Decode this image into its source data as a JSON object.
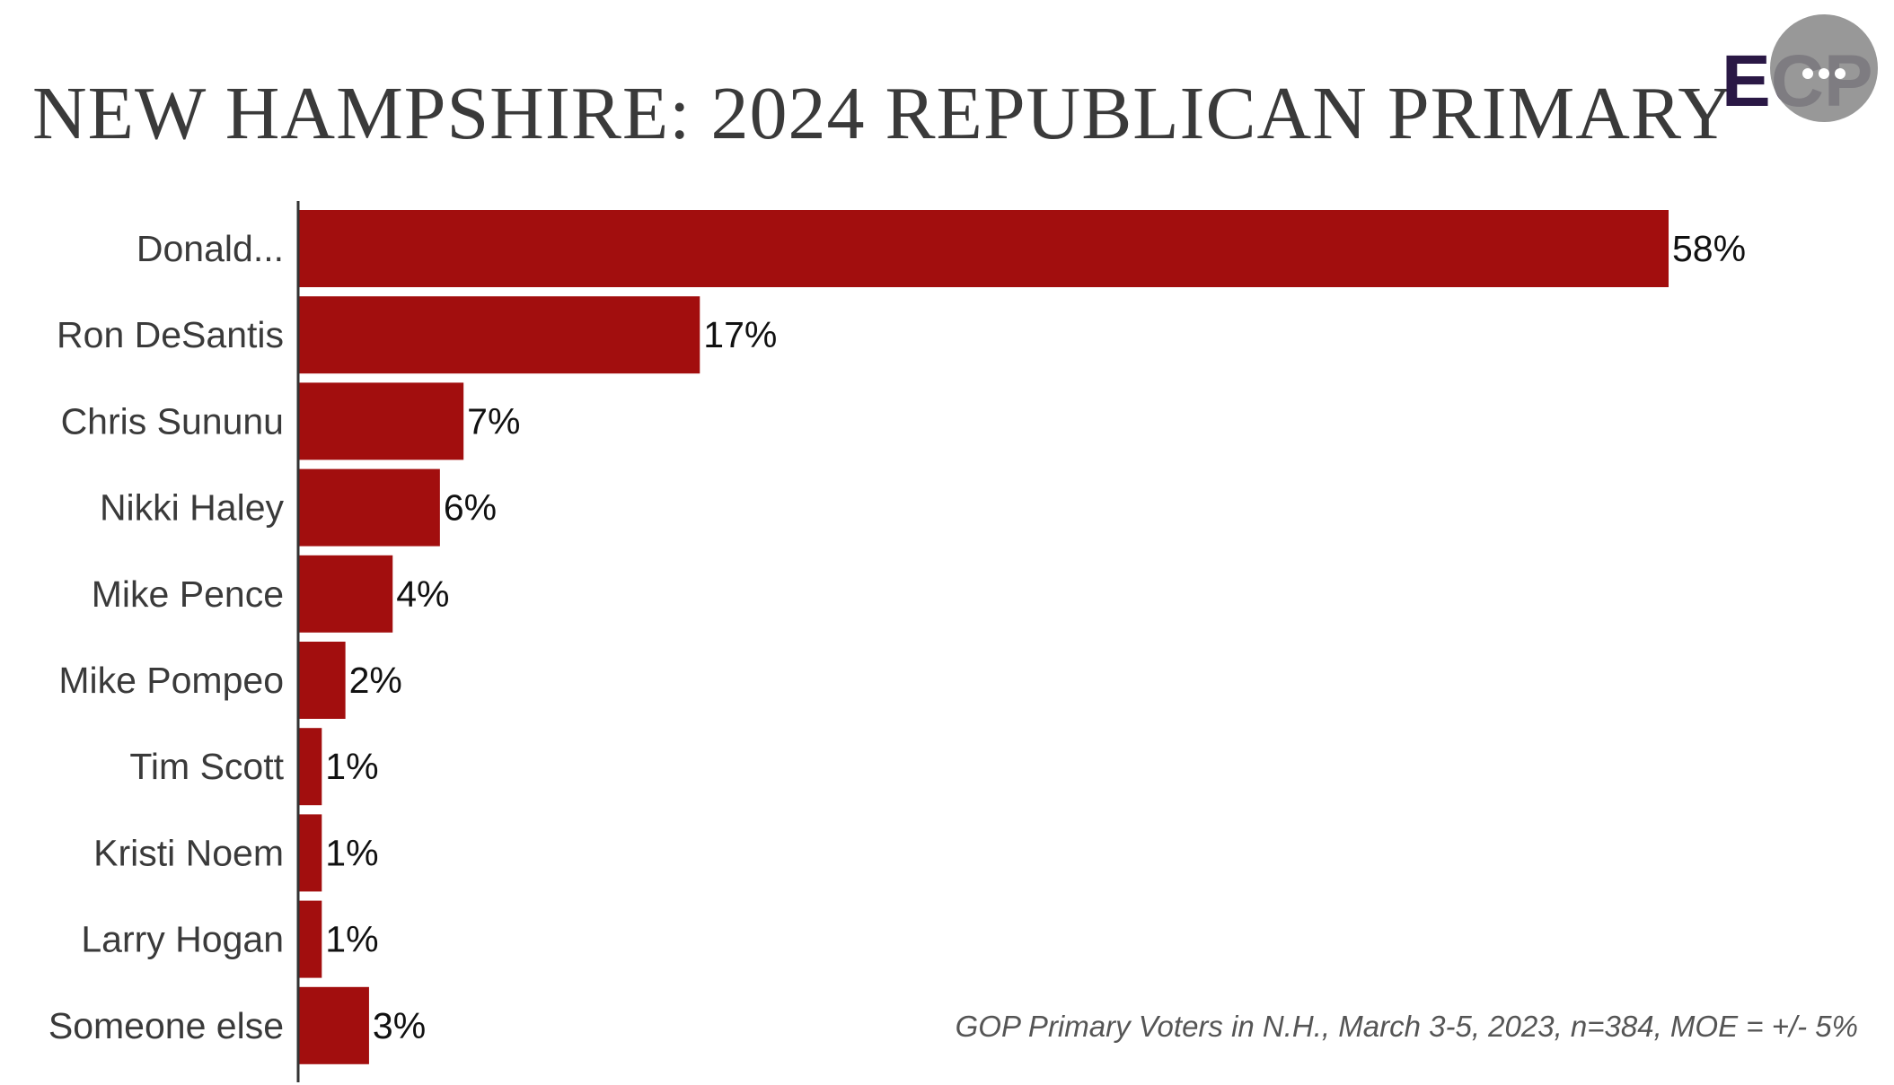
{
  "colors": {
    "bar": "#a20e0e",
    "axis": "#333333",
    "title": "#3a3a3a"
  },
  "logo": {
    "text": "ECP",
    "icon": "ecp-logo-icon"
  },
  "footnote": "GOP Primary Voters in N.H., March 3-5, 2023, n=384, MOE = +/- 5%",
  "chart_data": {
    "type": "bar",
    "orientation": "horizontal",
    "title": "NEW HAMPSHIRE: 2024 REPUBLICAN PRIMARY",
    "categories": [
      "Donald...",
      "Ron DeSantis",
      "Chris Sununu",
      "Nikki Haley",
      "Mike Pence",
      "Mike Pompeo",
      "Tim Scott",
      "Kristi Noem",
      "Larry Hogan",
      "Someone else"
    ],
    "values": [
      58,
      17,
      7,
      6,
      4,
      2,
      1,
      1,
      1,
      3
    ],
    "value_labels": [
      "58%",
      "17%",
      "7%",
      "6%",
      "4%",
      "2%",
      "1%",
      "1%",
      "1%",
      "3%"
    ],
    "unit": "%",
    "xlim": [
      0,
      58
    ],
    "grid": false,
    "legend": "none"
  }
}
